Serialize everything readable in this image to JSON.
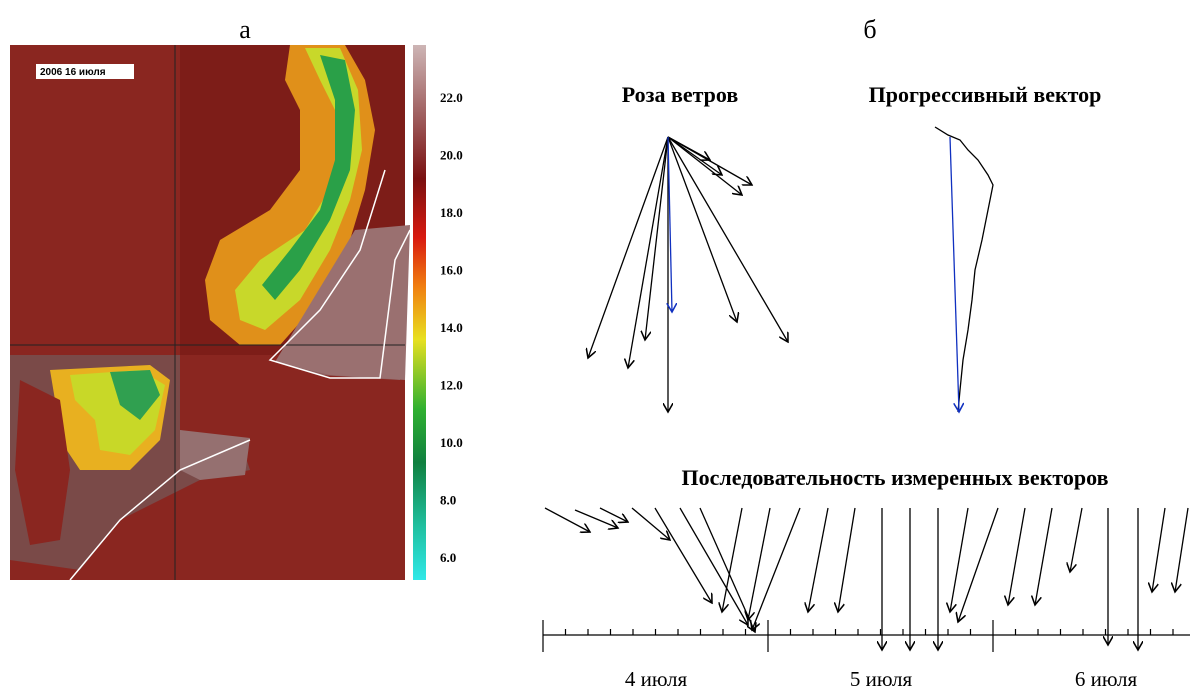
{
  "panel_a": {
    "label": "а",
    "map_label": "2006  16 июля",
    "colorbar_ticks": [
      "22.0",
      "20.0",
      "18.0",
      "16.0",
      "14.0",
      "12.0",
      "10.0",
      "8.0",
      "6.0"
    ]
  },
  "panel_b": {
    "label": "б",
    "wind_rose_title": "Роза ветров",
    "progressive_vector_title": "Прогрессивный вектор",
    "sequence_title": "Последовательность измеренных векторов",
    "date_labels": [
      "4 июля",
      "5 июля",
      "6 июля"
    ]
  }
}
